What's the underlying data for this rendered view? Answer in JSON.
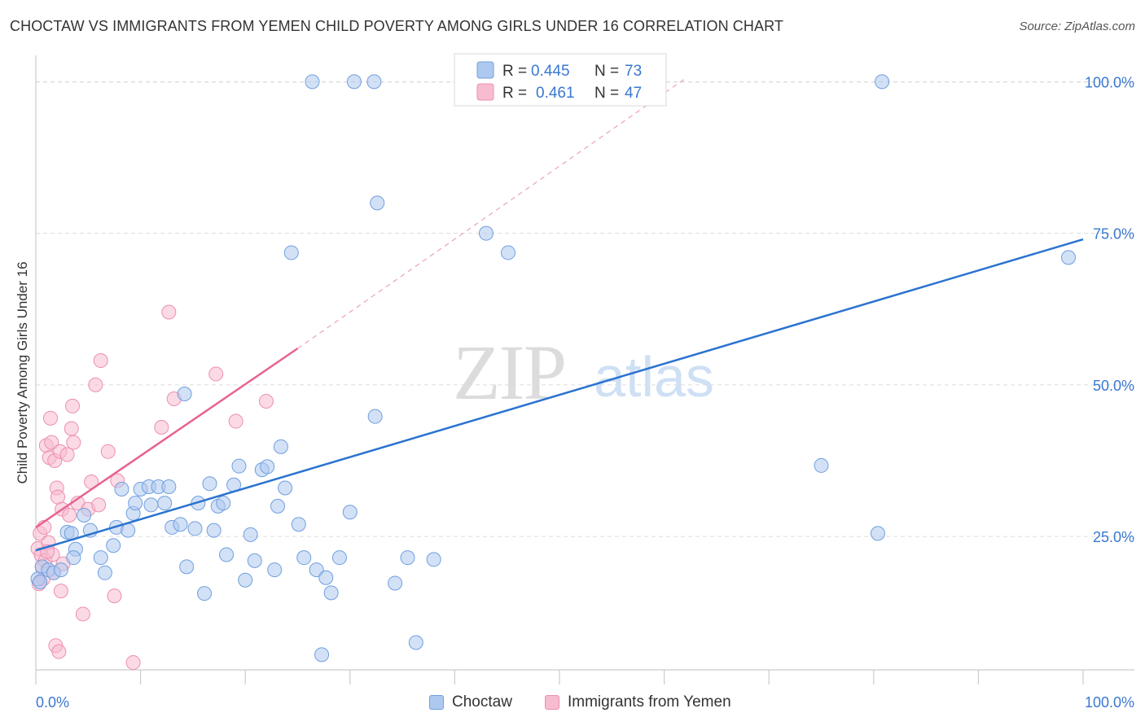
{
  "title": "CHOCTAW VS IMMIGRANTS FROM YEMEN CHILD POVERTY AMONG GIRLS UNDER 16 CORRELATION CHART",
  "source": "Source: ZipAtlas.com",
  "watermark": {
    "zip": "ZIP",
    "atlas": "atlas"
  },
  "colors": {
    "blue_fill": "#aec9ef",
    "blue_stroke": "#6f9fe0",
    "blue_line": "#2a73d0",
    "pink_fill": "#f7bcd0",
    "pink_stroke": "#ec8fae",
    "pink_line": "#e8638c",
    "axis_text": "#3a78d0",
    "grid": "#dcdcdc"
  },
  "legend_top": [
    {
      "r_label": "R =",
      "r_value": "0.445",
      "n_label": "N =",
      "n_value": "73"
    },
    {
      "r_label": "R =",
      "r_value": "0.461",
      "n_label": "N =",
      "n_value": "47"
    }
  ],
  "chart_data": {
    "type": "scatter",
    "title": "CHOCTAW VS IMMIGRANTS FROM YEMEN CHILD POVERTY AMONG GIRLS UNDER 16 CORRELATION CHART",
    "xlabel": "",
    "ylabel": "Child Poverty Among Girls Under 16",
    "x_range": [
      0,
      100
    ],
    "y_range": [
      3,
      103
    ],
    "x_tick_labels": [
      "0.0%",
      "100.0%"
    ],
    "y_ticks": [
      25,
      50,
      75,
      100
    ],
    "y_tick_labels": [
      "25.0%",
      "50.0%",
      "75.0%",
      "100.0%"
    ],
    "grid": true,
    "series": [
      {
        "name": "Choctaw",
        "r": 0.445,
        "n": 73,
        "trend": {
          "x0": 0,
          "y0": 22.7,
          "x1": 100,
          "y1": 74.0
        },
        "points": [
          [
            0.2,
            18
          ],
          [
            0.6,
            20
          ],
          [
            1.2,
            19.5
          ],
          [
            1.7,
            19
          ],
          [
            2.4,
            19.5
          ],
          [
            3.8,
            22.9
          ],
          [
            3.0,
            25.7
          ],
          [
            3.6,
            21.5
          ],
          [
            4.6,
            28.5
          ],
          [
            3.4,
            25.5
          ],
          [
            5.2,
            26
          ],
          [
            6.2,
            21.5
          ],
          [
            6.6,
            19
          ],
          [
            7.4,
            23.5
          ],
          [
            7.7,
            26.5
          ],
          [
            8.2,
            32.8
          ],
          [
            8.8,
            26
          ],
          [
            9.3,
            28.8
          ],
          [
            9.5,
            30.5
          ],
          [
            10.0,
            32.8
          ],
          [
            10.8,
            33.2
          ],
          [
            11.0,
            30.2
          ],
          [
            11.7,
            33.2
          ],
          [
            12.3,
            30.5
          ],
          [
            12.7,
            33.2
          ],
          [
            13.0,
            26.5
          ],
          [
            13.8,
            27
          ],
          [
            14.2,
            48.5
          ],
          [
            14.4,
            20
          ],
          [
            15.2,
            26.3
          ],
          [
            15.5,
            30.5
          ],
          [
            16.1,
            15.6
          ],
          [
            16.6,
            33.7
          ],
          [
            17.0,
            26
          ],
          [
            17.4,
            30
          ],
          [
            17.9,
            30.5
          ],
          [
            18.2,
            22
          ],
          [
            18.9,
            33.5
          ],
          [
            19.4,
            36.6
          ],
          [
            20.0,
            17.8
          ],
          [
            20.5,
            25.3
          ],
          [
            20.9,
            21
          ],
          [
            21.6,
            36
          ],
          [
            22.1,
            36.5
          ],
          [
            22.8,
            19.5
          ],
          [
            23.1,
            30
          ],
          [
            23.4,
            39.8
          ],
          [
            23.8,
            33
          ],
          [
            24.4,
            71.8
          ],
          [
            25.1,
            27
          ],
          [
            25.6,
            21.5
          ],
          [
            26.8,
            19.5
          ],
          [
            27.3,
            5.5
          ],
          [
            27.7,
            18.2
          ],
          [
            28.2,
            15.7
          ],
          [
            29.0,
            21.5
          ],
          [
            30.0,
            29
          ],
          [
            30.4,
            100
          ],
          [
            32.3,
            100
          ],
          [
            32.4,
            44.8
          ],
          [
            32.6,
            80
          ],
          [
            34.3,
            17.3
          ],
          [
            35.5,
            21.5
          ],
          [
            36.3,
            7.5
          ],
          [
            38.0,
            21.2
          ],
          [
            43.0,
            75
          ],
          [
            45.1,
            71.8
          ],
          [
            75.0,
            36.7
          ],
          [
            80.4,
            25.5
          ],
          [
            80.8,
            100
          ],
          [
            98.6,
            71
          ],
          [
            26.4,
            100
          ],
          [
            0.4,
            17.5
          ]
        ]
      },
      {
        "name": "Immigrants from Yemen",
        "r": 0.461,
        "n": 47,
        "trend": {
          "x0": 0,
          "y0": 26.5,
          "x1": 25.0,
          "y1": 56.0,
          "dash_x1": 62.0,
          "dash_y1": 100.5
        },
        "points": [
          [
            0.2,
            23
          ],
          [
            0.4,
            25.5
          ],
          [
            0.5,
            22
          ],
          [
            0.6,
            20
          ],
          [
            0.7,
            18
          ],
          [
            0.8,
            26.5
          ],
          [
            0.9,
            21
          ],
          [
            1.0,
            40
          ],
          [
            1.2,
            24
          ],
          [
            1.3,
            38
          ],
          [
            1.4,
            44.5
          ],
          [
            1.5,
            40.5
          ],
          [
            1.6,
            22
          ],
          [
            1.7,
            19
          ],
          [
            1.8,
            37.5
          ],
          [
            1.9,
            7
          ],
          [
            2.0,
            33
          ],
          [
            2.1,
            31.5
          ],
          [
            2.2,
            6
          ],
          [
            2.3,
            39
          ],
          [
            2.4,
            16
          ],
          [
            2.5,
            29.5
          ],
          [
            3.0,
            38.5
          ],
          [
            3.2,
            28.5
          ],
          [
            3.4,
            42.8
          ],
          [
            3.5,
            46.5
          ],
          [
            3.6,
            40.5
          ],
          [
            4.0,
            30.5
          ],
          [
            4.5,
            12.2
          ],
          [
            5.0,
            29.5
          ],
          [
            5.3,
            34
          ],
          [
            5.7,
            50
          ],
          [
            6.0,
            30.2
          ],
          [
            6.2,
            54
          ],
          [
            6.9,
            39
          ],
          [
            7.5,
            15.2
          ],
          [
            7.8,
            34.2
          ],
          [
            9.3,
            4.2
          ],
          [
            12.0,
            43
          ],
          [
            12.7,
            62
          ],
          [
            13.2,
            47.7
          ],
          [
            17.2,
            51.8
          ],
          [
            19.1,
            44
          ],
          [
            22.0,
            47.3
          ],
          [
            2.6,
            20.5
          ],
          [
            1.1,
            22.5
          ],
          [
            0.3,
            17.2
          ]
        ]
      }
    ]
  }
}
